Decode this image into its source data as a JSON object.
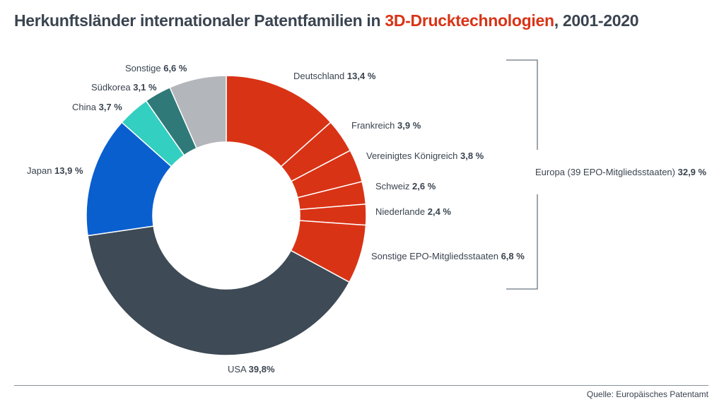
{
  "title": {
    "prefix": "Herkunftsländer internationaler Patentfamilien in ",
    "highlight": "3D-Drucktechnologien",
    "suffix": ", 2001-2020"
  },
  "source": "Quelle: Europäisches Patentamt",
  "colors": {
    "europe": "#d93316",
    "usa": "#3e4a55",
    "japan": "#0a5fcf",
    "china": "#33cfc0",
    "korea": "#2f7a78",
    "other": "#b3b6ba",
    "title_accent": "#d93316"
  },
  "chart_data": {
    "type": "pie",
    "donut": true,
    "start": "top, clockwise",
    "slices": [
      {
        "label": "Deutschland",
        "value": 13.4,
        "display": "13,4 %",
        "color": "#d93316"
      },
      {
        "label": "Frankreich",
        "value": 3.9,
        "display": "3,9 %",
        "color": "#d93316"
      },
      {
        "label": "Vereinigtes Königreich",
        "value": 3.8,
        "display": "3,8 %",
        "color": "#d93316"
      },
      {
        "label": "Schweiz",
        "value": 2.6,
        "display": "2,6 %",
        "color": "#d93316"
      },
      {
        "label": "Niederlande",
        "value": 2.4,
        "display": "2,4 %",
        "color": "#d93316"
      },
      {
        "label": "Sonstige EPO-Mitgliedsstaaten",
        "value": 6.8,
        "display": "6,8 %",
        "color": "#d93316"
      },
      {
        "label": "USA",
        "value": 39.8,
        "display": "39,8%",
        "color": "#3e4a55"
      },
      {
        "label": "Japan",
        "value": 13.9,
        "display": "13,9 %",
        "color": "#0a5fcf"
      },
      {
        "label": "China",
        "value": 3.7,
        "display": "3,7 %",
        "color": "#33cfc0"
      },
      {
        "label": "Südkorea",
        "value": 3.1,
        "display": "3,1 %",
        "color": "#2f7a78"
      },
      {
        "label": "Sonstige",
        "value": 6.6,
        "display": "6,6 %",
        "color": "#b3b6ba"
      }
    ],
    "group": {
      "label": "Europa (39 EPO-Mitgliedsstaaten)",
      "value": 32.9,
      "display": "32,9 %"
    }
  }
}
